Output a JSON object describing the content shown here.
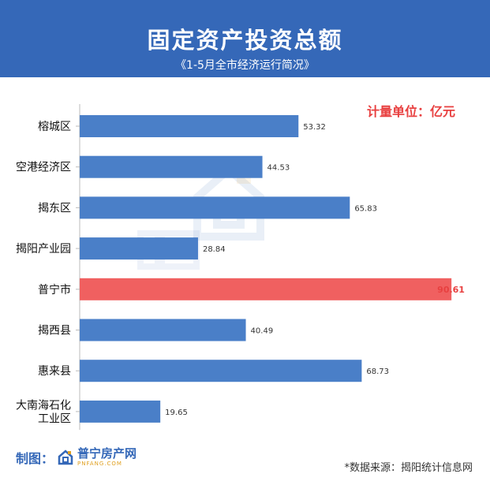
{
  "header": {
    "title": "固定资产投资总额",
    "subtitle": "《1-5月全市经济运行简况》"
  },
  "unit_label": "计量单位：亿元",
  "footer": {
    "made_by": "制图：",
    "logo_name": "普宁房产网",
    "logo_domain": "PNFANG.COM",
    "source": "*数据来源：揭阳统计信息网"
  },
  "colors": {
    "header_bg": "#3568b8",
    "bar_default": "#4a7fc8",
    "bar_highlight": "#f06060",
    "highlight_label": "#e84040",
    "unit_text": "#e84040"
  },
  "chart_data": {
    "type": "bar",
    "orientation": "horizontal",
    "categories": [
      "榕城区",
      "空港经济区",
      "揭东区",
      "揭阳产业园",
      "普宁市",
      "揭西县",
      "惠来县",
      "大南海石化\n工业区"
    ],
    "values": [
      53.32,
      44.53,
      65.83,
      28.84,
      90.61,
      40.49,
      68.73,
      19.65
    ],
    "value_labels": [
      "53.32",
      "44.53",
      "65.83",
      "28.84",
      "90.61",
      "40.49",
      "68.73",
      "19.65"
    ],
    "highlight_index": 4,
    "xlim": [
      0,
      100
    ],
    "grid": false,
    "legend": "none"
  }
}
